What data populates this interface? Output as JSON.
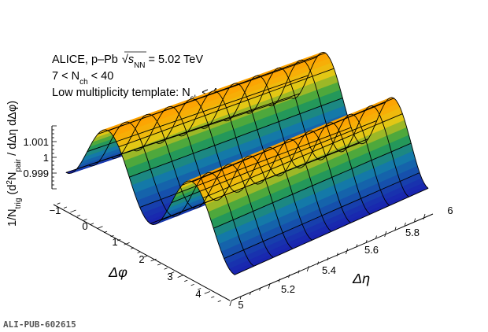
{
  "chart_data": {
    "type": "surface",
    "annotation": {
      "line1_prefix": "ALICE, p–Pb ",
      "line1_sqrt_sub": "NN",
      "line1_suffix": " = 5.02 TeV",
      "line2_prefix": "7 < N",
      "line2_sub": "ch",
      "line2_suffix": " < 40",
      "line3_prefix": "Low multiplicity template: N",
      "line3_sub": "ch",
      "line3_suffix": " < 4"
    },
    "x_axis": {
      "title": "Δφ",
      "range": [
        -1.5708,
        4.7124
      ],
      "ticks": [
        "−1",
        "0",
        "1",
        "2",
        "3",
        "4"
      ],
      "tick_values": [
        -1,
        0,
        1,
        2,
        3,
        4
      ]
    },
    "y_axis": {
      "title": "Δη",
      "range": [
        5.0,
        6.0
      ],
      "ticks": [
        "5",
        "5.2",
        "5.4",
        "5.6",
        "5.8",
        "6"
      ],
      "tick_values": [
        5.0,
        5.2,
        5.4,
        5.6,
        5.8,
        6.0
      ]
    },
    "z_axis": {
      "title": "1/N_trig (d²N_pair / dΔη dΔφ)",
      "range": [
        0.998,
        1.0022
      ],
      "ticks": [
        "0.999",
        "1",
        "1.001"
      ],
      "tick_values": [
        0.999,
        1.0,
        1.001
      ]
    },
    "surface": {
      "phi_values": [
        -1.5708,
        -1.1781,
        -0.7854,
        -0.3927,
        0.0,
        0.3927,
        0.7854,
        1.1781,
        1.5708,
        1.9635,
        2.3562,
        2.7489,
        3.1416,
        3.5343,
        3.927,
        4.3197,
        4.7124
      ],
      "eta_values": [
        5.0,
        5.1,
        5.2,
        5.3,
        5.4,
        5.5,
        5.6,
        5.7,
        5.8,
        5.9,
        6.0
      ],
      "baseline": 0.9995,
      "v2_amplitude": 0.0012,
      "description_color_scale": "blue to yellow/orange"
    },
    "label": "ALI-PUB-602615"
  },
  "colors": {
    "low": "#1e2ab0",
    "mid": "#1a9a5a",
    "high": "#ffb400",
    "peak": "#ffa000",
    "mesh": "#000000"
  }
}
